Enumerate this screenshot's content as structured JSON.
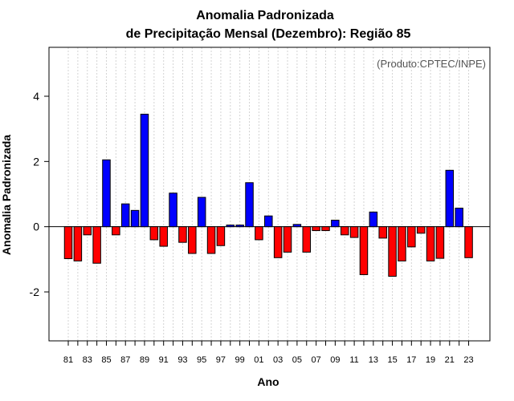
{
  "chart_data": {
    "type": "bar",
    "title_line1": "Anomalia Padronizada",
    "title_line2": "de Precipitação Mensal (Dezembro): Região 85",
    "xlabel": "Ano",
    "ylabel": "Anomalia Padronizada",
    "annotation": "(Produto:CPTEC/INPE)",
    "ylim": [
      -3.5,
      5.5
    ],
    "yticks": [
      -2,
      0,
      2,
      4
    ],
    "ytick_labels": [
      "-2",
      "0",
      "2",
      "4"
    ],
    "grid": true,
    "categories": [
      "81",
      "82",
      "83",
      "84",
      "85",
      "86",
      "87",
      "88",
      "89",
      "90",
      "91",
      "92",
      "93",
      "94",
      "95",
      "96",
      "97",
      "98",
      "99",
      "00",
      "01",
      "02",
      "03",
      "04",
      "05",
      "06",
      "07",
      "08",
      "09",
      "10",
      "11",
      "12",
      "13",
      "14",
      "15",
      "16",
      "17",
      "18",
      "19",
      "20",
      "21",
      "22",
      "23"
    ],
    "tick_labels": [
      "81",
      "83",
      "85",
      "87",
      "89",
      "91",
      "93",
      "95",
      "97",
      "99",
      "01",
      "03",
      "05",
      "07",
      "09",
      "11",
      "13",
      "15",
      "17",
      "19",
      "21",
      "23"
    ],
    "values": [
      -0.98,
      -1.05,
      -0.25,
      -1.12,
      2.05,
      -0.25,
      0.7,
      0.5,
      3.45,
      -0.4,
      -0.6,
      1.03,
      -0.48,
      -0.82,
      0.9,
      -0.82,
      -0.58,
      0.05,
      0.05,
      1.35,
      -0.4,
      0.33,
      -0.95,
      -0.78,
      0.07,
      -0.78,
      -0.12,
      -0.12,
      0.2,
      -0.25,
      -0.33,
      -1.47,
      0.45,
      -0.35,
      -1.52,
      -1.05,
      -0.62,
      -0.2,
      -1.05,
      -0.97,
      1.73,
      0.57,
      -0.95
    ],
    "colors": {
      "positive": "#0000ff",
      "negative": "#ff0000"
    }
  }
}
